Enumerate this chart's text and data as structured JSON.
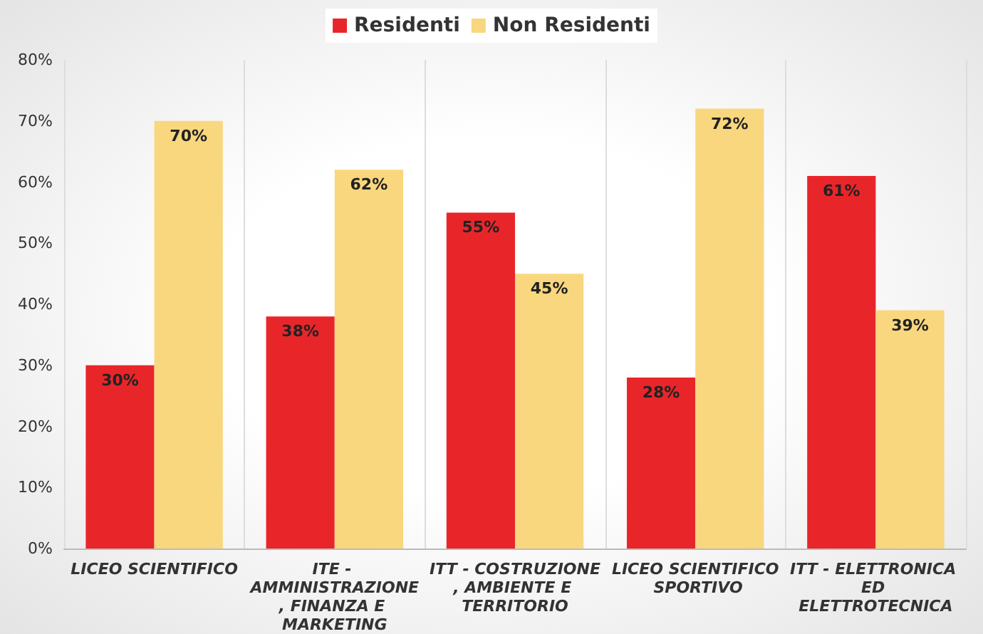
{
  "chart_data": {
    "type": "bar",
    "categories": [
      "LICEO SCIENTIFICO",
      "ITE - AMMINISTRAZIONE, FINANZA E MARKETING",
      "ITT - COSTRUZIONE, AMBIENTE E TERRITORIO",
      "LICEO SCIENTIFICO SPORTIVO",
      "ITT - ELETTRONICA ED ELETTROTECNICA"
    ],
    "series": [
      {
        "name": "Residenti",
        "color": "#e8262a",
        "values": [
          30,
          38,
          55,
          28,
          61
        ],
        "value_labels": [
          "30%",
          "38%",
          "55%",
          "28%",
          "61%"
        ]
      },
      {
        "name": "Non Residenti",
        "color": "#f9d77e",
        "values": [
          70,
          62,
          45,
          72,
          39
        ],
        "value_labels": [
          "70%",
          "62%",
          "45%",
          "72%",
          "39%"
        ]
      }
    ],
    "ylim": [
      0,
      80
    ],
    "yticks": [
      {
        "value": 0,
        "label": "0%"
      },
      {
        "value": 10,
        "label": "10%"
      },
      {
        "value": 20,
        "label": "20%"
      },
      {
        "value": 30,
        "label": "30%"
      },
      {
        "value": 40,
        "label": "40%"
      },
      {
        "value": 50,
        "label": "50%"
      },
      {
        "value": 60,
        "label": "60%"
      },
      {
        "value": 70,
        "label": "70%"
      },
      {
        "value": 80,
        "label": "80%"
      }
    ],
    "grid": "x",
    "legend": "top"
  }
}
